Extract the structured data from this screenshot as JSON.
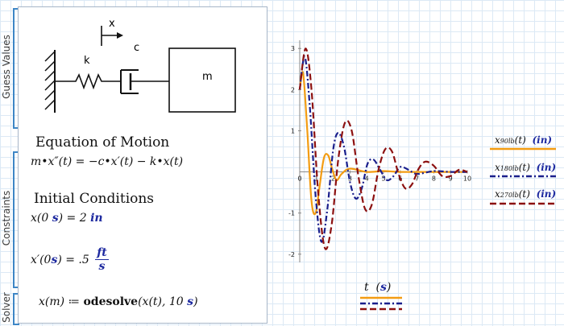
{
  "regions": [
    {
      "label": "Guess Values"
    },
    {
      "label": "Constraints"
    },
    {
      "label": "Solver"
    }
  ],
  "diagram": {
    "x_label": "x",
    "spring_label": "k",
    "damper_label": "c",
    "mass_label": "m"
  },
  "equation_heading": "Equation of Motion",
  "equation": "m•x″(t) = −c•x′(t) − k•x(t)",
  "initial_heading": "Initial Conditions",
  "ic1": {
    "lhs": "x(0 ",
    "s": "s",
    "rhs": ") = 2 ",
    "unit": "in"
  },
  "ic2": {
    "lhs": "x′(0 ",
    "s": "s",
    "rhs": ") = .5 ",
    "num": "ft",
    "den": "s"
  },
  "solver": {
    "lhs": "x(m) ≔ ",
    "fn": "odesolve",
    "args": "(x(t), 10 ",
    "s": "s",
    "close": ")"
  },
  "x_axis_label": {
    "var": "t",
    "unit": "s"
  },
  "colors": {
    "series_90": "#f39c12",
    "series_180": "#1a1f8c",
    "series_270": "#8c1010",
    "bracket": "#3d86c6"
  },
  "chart_data": {
    "type": "line",
    "xlabel": "t (s)",
    "xlim": [
      0,
      10
    ],
    "ylim": [
      -2.2,
      3.2
    ],
    "x_ticks": [
      0,
      1,
      2,
      3,
      4,
      5,
      6,
      7,
      8,
      9,
      10
    ],
    "y_ticks": [
      -2,
      -1,
      1,
      2,
      3
    ],
    "series": [
      {
        "name": "x90lb(t) (in)",
        "label_main": "x",
        "label_sub": "90lb",
        "label_tail": "(t)",
        "label_unit": "(in)",
        "style": "solid",
        "x": [
          0,
          0.2,
          0.45,
          0.7,
          0.95,
          1.2,
          1.45,
          1.7,
          1.95,
          2.2,
          2.5,
          3.0,
          4.0,
          5.0,
          6.0,
          8.0,
          10.0
        ],
        "y": [
          2.0,
          2.4,
          1.0,
          -0.7,
          -1.0,
          -0.3,
          0.35,
          0.4,
          0.05,
          -0.2,
          -0.05,
          0.08,
          0.0,
          0.02,
          0.0,
          0.0,
          0.0
        ]
      },
      {
        "name": "x180lb(t) (in)",
        "label_main": "x",
        "label_sub": "180lb",
        "label_tail": "(t)",
        "label_unit": "(in)",
        "style": "dashdot",
        "x": [
          0,
          0.3,
          0.6,
          0.95,
          1.3,
          1.65,
          2.0,
          2.3,
          2.65,
          3.0,
          3.35,
          3.7,
          4.05,
          4.4,
          4.8,
          5.2,
          5.6,
          6.0,
          6.5,
          7.0,
          8.0,
          9.0,
          10.0
        ],
        "y": [
          2.0,
          2.8,
          1.6,
          -0.6,
          -1.7,
          -0.9,
          0.55,
          0.95,
          0.6,
          -0.25,
          -0.65,
          -0.4,
          0.2,
          0.3,
          0.05,
          -0.2,
          -0.1,
          0.12,
          0.05,
          -0.05,
          0.02,
          0.0,
          0.0
        ]
      },
      {
        "name": "x270lb(t) (in)",
        "label_main": "x",
        "label_sub": "270lb",
        "label_tail": "(t)",
        "label_unit": "(in)",
        "style": "dashed",
        "x": [
          0,
          0.35,
          0.7,
          1.1,
          1.5,
          1.9,
          2.3,
          2.7,
          3.1,
          3.5,
          3.9,
          4.3,
          4.7,
          5.1,
          5.5,
          5.9,
          6.3,
          6.7,
          7.1,
          7.5,
          8.0,
          8.5,
          9.0,
          9.5,
          10.0
        ],
        "y": [
          2.0,
          3.0,
          2.0,
          -0.5,
          -1.85,
          -1.3,
          0.3,
          1.2,
          1.0,
          -0.1,
          -0.9,
          -0.8,
          0.05,
          0.55,
          0.5,
          -0.05,
          -0.4,
          -0.3,
          0.08,
          0.25,
          0.15,
          -0.1,
          -0.1,
          0.05,
          0.0
        ]
      }
    ]
  }
}
